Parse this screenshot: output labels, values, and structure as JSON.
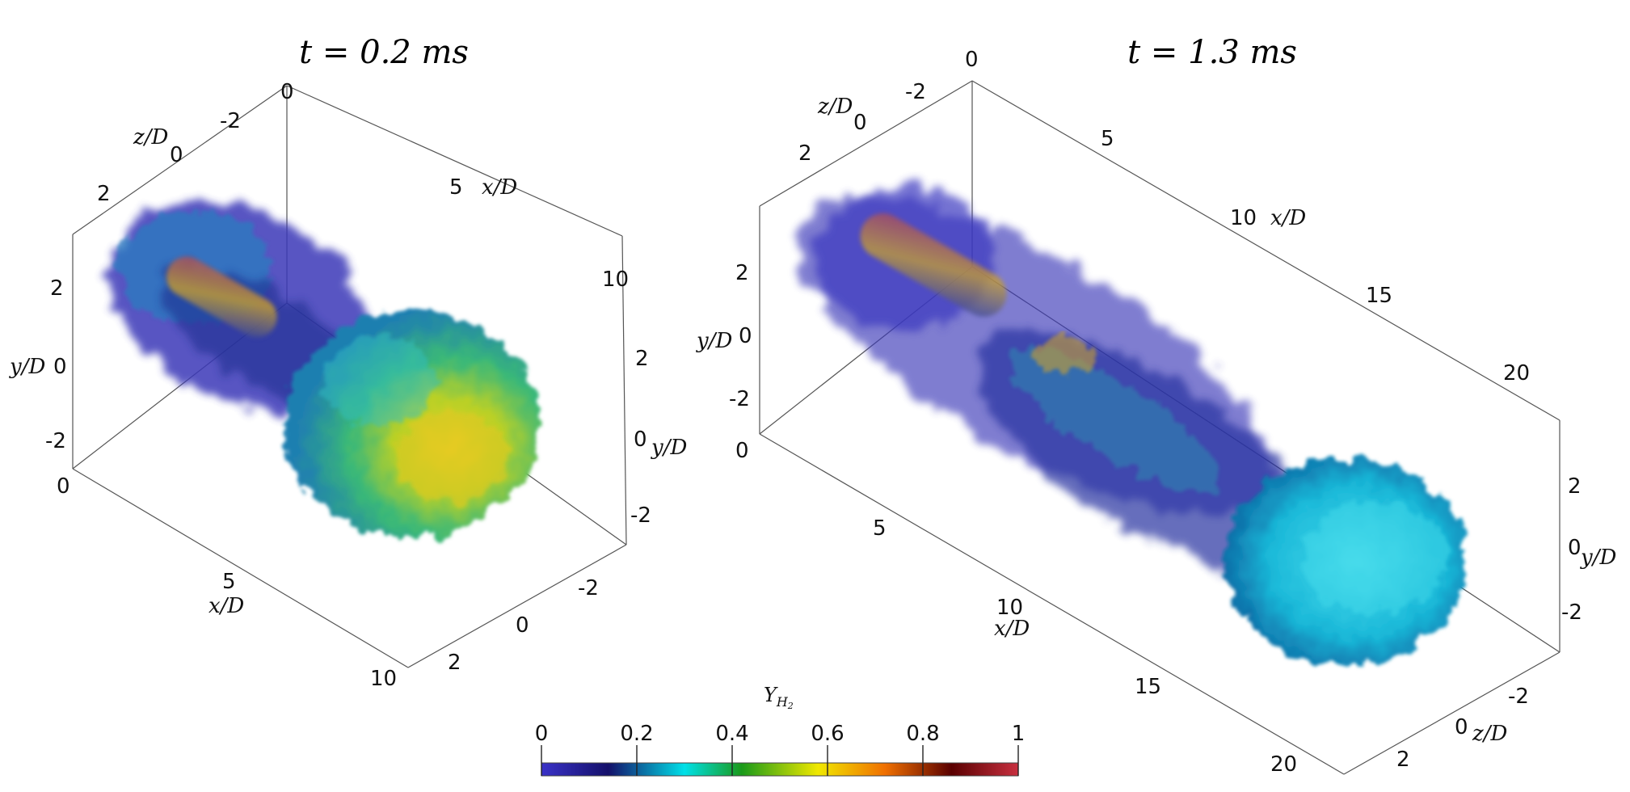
{
  "panels": [
    {
      "title": "t = 0.2 ms",
      "axes": {
        "x": {
          "label": "x/D",
          "ticks": [
            "5",
            "10"
          ]
        },
        "x_bottom": {
          "label": "x/D",
          "ticks": [
            "5",
            "10"
          ]
        },
        "y_left": {
          "label": "y/D",
          "ticks": [
            "2",
            "0",
            "-2"
          ]
        },
        "y_right": {
          "label": "y/D",
          "ticks": [
            "2",
            "0",
            "-2"
          ]
        },
        "z_top": {
          "label": "z/D",
          "ticks": [
            "2",
            "0",
            "-2"
          ]
        },
        "z_bottom": {
          "ticks": [
            "-2",
            "0",
            "2"
          ]
        },
        "origin_top": "0",
        "origin_left": "0"
      }
    },
    {
      "title": "t = 1.3 ms",
      "axes": {
        "x": {
          "label": "x/D",
          "ticks": [
            "5",
            "10",
            "15",
            "20"
          ]
        },
        "x_bottom": {
          "label": "x/D",
          "ticks": [
            "5",
            "10",
            "15",
            "20"
          ]
        },
        "y_left": {
          "label": "y/D",
          "ticks": [
            "2",
            "0",
            "-2"
          ]
        },
        "y_right": {
          "label": "y/D",
          "ticks": [
            "2",
            "0",
            "-2"
          ]
        },
        "z_top": {
          "label": "z/D",
          "ticks": [
            "2",
            "0",
            "-2"
          ]
        },
        "z_bottom": {
          "label": "z/D",
          "ticks": [
            "-2",
            "0",
            "2"
          ]
        },
        "origin_top": "0",
        "origin_left": "0"
      }
    }
  ],
  "colorbar": {
    "label_base": "Y",
    "label_sub": "H",
    "label_subsub": "2",
    "ticks": [
      "0",
      "0.2",
      "0.4",
      "0.6",
      "0.8",
      "1"
    ],
    "colors": [
      "#3a32c8",
      "#14106a",
      "#00e0e8",
      "#1a9a1a",
      "#f0e800",
      "#f07000",
      "#5a0000",
      "#c83040"
    ]
  }
}
